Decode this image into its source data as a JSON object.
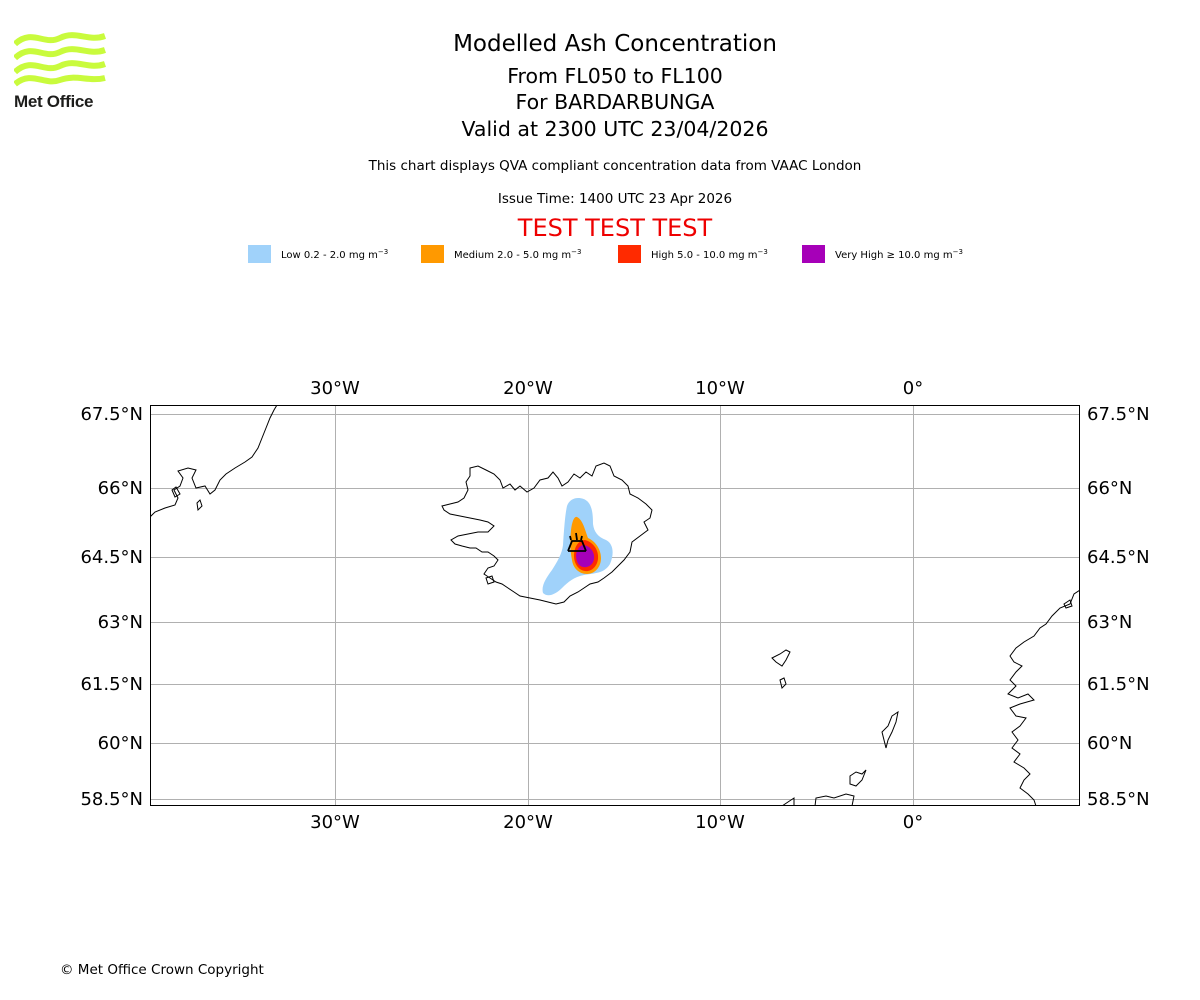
{
  "logo": {
    "text": "Met Office",
    "color": "#c9fb3d"
  },
  "header": {
    "title": "Modelled Ash Concentration",
    "levels": "From FL050 to FL100",
    "volcano": "For BARDARBUNGA",
    "valid": "Valid at 2300 UTC 23/04/2026",
    "description": "This chart displays QVA compliant concentration data from VAAC London",
    "issue_time": "Issue Time: 1400 UTC 23 Apr 2026",
    "test_banner": "TEST TEST TEST"
  },
  "legend": [
    {
      "label": "Low 0.2 - 2.0 mg m",
      "exp": "−3",
      "color": "#a0d2fa"
    },
    {
      "label": "Medium 2.0 - 5.0 mg m",
      "exp": "−3",
      "color": "#ff9900"
    },
    {
      "label": "High 5.0 - 10.0 mg m",
      "exp": "−3",
      "color": "#ff2a00"
    },
    {
      "label": "Very High  ≥  10.0 mg m",
      "exp": "−3",
      "color": "#a600b8"
    }
  ],
  "map": {
    "lon_ticks": [
      "30°W",
      "20°W",
      "10°W",
      "0°"
    ],
    "lat_ticks": [
      "67.5°N",
      "66°N",
      "64.5°N",
      "63°N",
      "61.5°N",
      "60°N",
      "58.5°N"
    ],
    "lon_range": [
      -39.6,
      8.7
    ],
    "lat_range": [
      58.3,
      67.7
    ],
    "grid": true
  },
  "footer": {
    "copyright": "© Met Office Crown Copyright"
  }
}
